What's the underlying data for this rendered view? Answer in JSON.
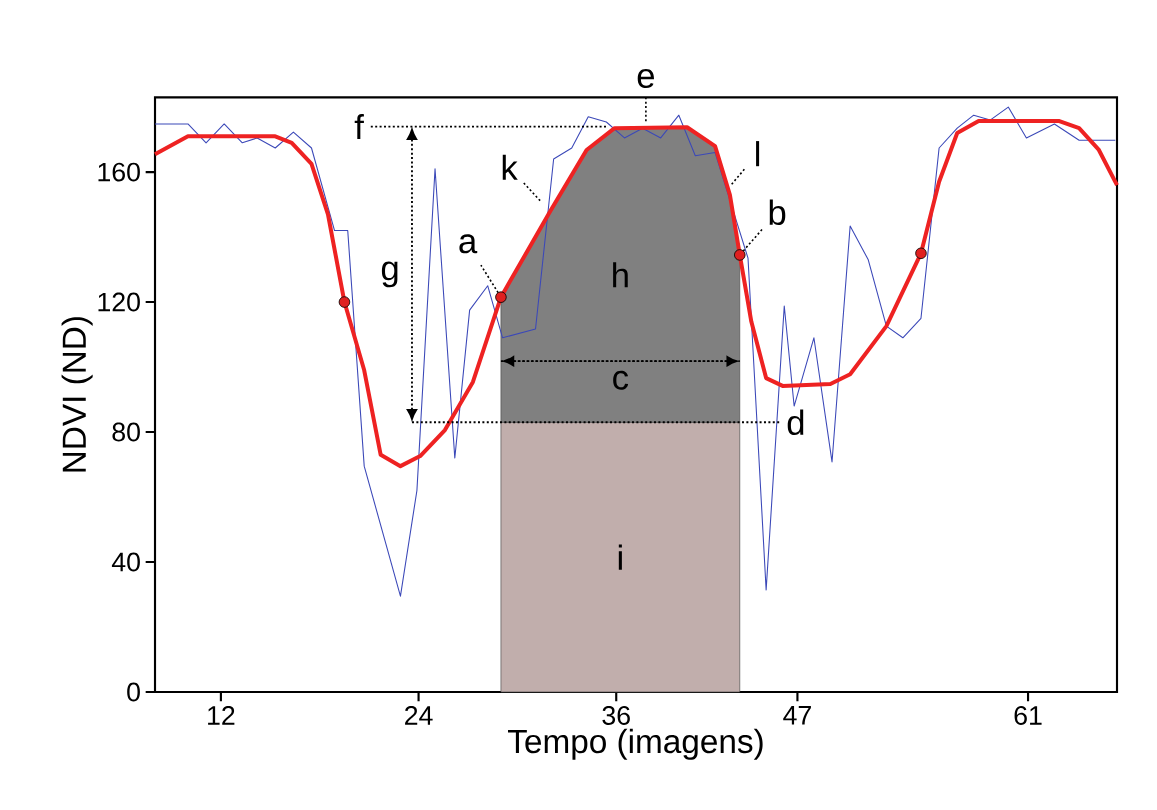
{
  "chart_data": {
    "type": "line",
    "xlabel": "Tempo (imagens)",
    "ylabel": "NDVI (ND)",
    "xlim": [
      8,
      66.4
    ],
    "ylim": [
      0,
      183
    ],
    "xticks": [
      12,
      24,
      36,
      47,
      61
    ],
    "yticks": [
      0,
      40,
      80,
      120,
      160
    ],
    "stacked": true,
    "series": [
      {
        "name": "i",
        "type": "area",
        "color": "#c1aeac",
        "x": [
          29.0,
          32.0,
          34.2,
          35.9,
          40.3,
          42.0,
          42.9,
          43.5
        ],
        "values": [
          83,
          83,
          83,
          83,
          83,
          83,
          83,
          83
        ]
      },
      {
        "name": "h",
        "type": "area",
        "color": "#808080",
        "x": [
          29.0,
          32.0,
          34.2,
          35.9,
          40.3,
          42.0,
          42.9,
          43.5
        ],
        "values": [
          38.5,
          65,
          83.8,
          90.5,
          90.8,
          85,
          70,
          51.5
        ]
      },
      {
        "color": "#3b48b8",
        "line_style": "solid",
        "x": [
          8.0,
          10.0,
          11.1,
          12.2,
          13.3,
          14.2,
          15.3,
          16.4,
          17.5,
          18.9,
          19.7,
          20.7,
          22.9,
          23.9,
          25.0,
          26.2,
          27.1,
          28.2,
          29.1,
          31.1,
          32.2,
          33.3,
          34.3,
          35.4,
          36.5,
          37.6,
          38.7,
          39.8,
          40.8,
          42.0,
          44.0,
          45.1,
          46.2,
          46.8,
          48.0,
          49.1,
          50.2,
          51.3,
          52.4,
          53.4,
          54.5,
          55.6,
          56.7,
          57.7,
          58.7,
          59.8,
          60.9,
          62.6,
          64.1,
          66.3
        ],
        "values": [
          174.8,
          174.8,
          169,
          174.8,
          169,
          170.5,
          167.4,
          172.3,
          167.4,
          142,
          142,
          69.5,
          29.5,
          62,
          161,
          72,
          117.5,
          125,
          109,
          111.7,
          164,
          167.4,
          177,
          175.4,
          170.5,
          173.5,
          170.5,
          177.5,
          165,
          166,
          133.5,
          31.4,
          118.8,
          88,
          109,
          70.8,
          143.4,
          133,
          112.6,
          109,
          115,
          167.4,
          173.5,
          177.5,
          176,
          180,
          170.5,
          174.8,
          169.8,
          169.8
        ]
      },
      {
        "color": "#ee2222",
        "line_style": "solid",
        "x": [
          8.0,
          10.0,
          15.3,
          16.3,
          17.5,
          18.5,
          19.5,
          20.7,
          21.7,
          22.9,
          24.1,
          25.6,
          27.3,
          29.0,
          32.0,
          34.2,
          35.9,
          40.3,
          42.0,
          42.9,
          43.5,
          44.2,
          45.1,
          46.1,
          49.0,
          50.2,
          52.4,
          54.5,
          55.6,
          56.7,
          58.0,
          62.9,
          64.1,
          65.3,
          66.4
        ],
        "values": [
          165.5,
          171,
          171,
          169,
          162.5,
          147,
          120,
          99,
          73,
          69.5,
          72.6,
          80.6,
          95.4,
          121.5,
          148,
          166.8,
          173.5,
          173.8,
          168,
          153,
          134.5,
          114,
          96.6,
          94.2,
          94.8,
          97.8,
          112.6,
          135,
          157,
          172,
          175.7,
          175.7,
          173.5,
          166.8,
          156
        ]
      },
      {
        "name": "f",
        "color": "#000000",
        "line_style": "dotted",
        "x": [
          21.1,
          35.4
        ],
        "values": [
          174,
          174
        ]
      },
      {
        "name": "d",
        "color": "#000000",
        "line_style": "dotted",
        "x": [
          23.6,
          45.9
        ],
        "values": [
          83,
          83
        ]
      },
      {
        "name": "c",
        "color": "#000000",
        "line_style": "dotted",
        "x": [
          29.0,
          43.5
        ],
        "values": [
          101.8,
          101.8
        ]
      },
      {
        "type": "scatter",
        "color": "#e02020",
        "marker": "circle",
        "x": [
          19.5,
          29.0,
          43.5,
          54.5
        ],
        "values": [
          120,
          121.5,
          134.5,
          135
        ]
      }
    ],
    "annotations": [
      {
        "text": "a",
        "x": 29.0,
        "y": 121.5
      },
      {
        "text": "b",
        "x": 43.5,
        "y": 134.5
      },
      {
        "text": "e",
        "x": 37.8,
        "y": 174
      },
      {
        "text": "k",
        "x": 31.6,
        "y": 150
      },
      {
        "text": "l",
        "x": 42.8,
        "y": 155
      },
      "g"
    ]
  }
}
